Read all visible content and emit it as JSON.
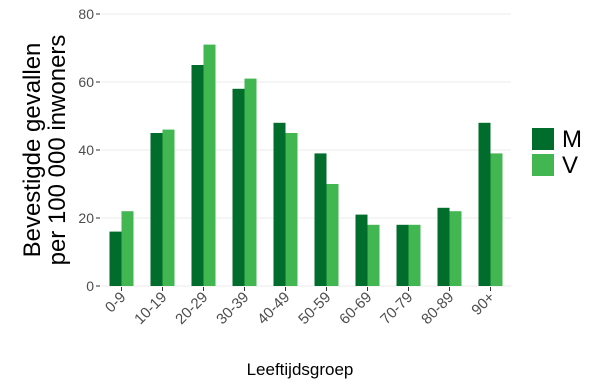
{
  "chart_data": {
    "type": "bar",
    "xlabel": "Leeftijdsgroep",
    "ylabel_lines": [
      "Bevestigde gevallen",
      "per 100 000 inwoners"
    ],
    "ylim": [
      0,
      80
    ],
    "yticks": [
      0,
      20,
      40,
      60,
      80
    ],
    "categories": [
      "0-9",
      "10-19",
      "20-29",
      "30-39",
      "40-49",
      "50-59",
      "60-69",
      "70-79",
      "80-89",
      "90+"
    ],
    "series": [
      {
        "name": "M",
        "color": "#006d2c",
        "values": [
          16,
          45,
          65,
          58,
          48,
          39,
          21,
          18,
          23,
          48
        ]
      },
      {
        "name": "V",
        "color": "#41b651",
        "values": [
          22,
          46,
          71,
          61,
          45,
          30,
          18,
          18,
          22,
          39
        ]
      }
    ],
    "grid": true,
    "legend_position": "right"
  }
}
